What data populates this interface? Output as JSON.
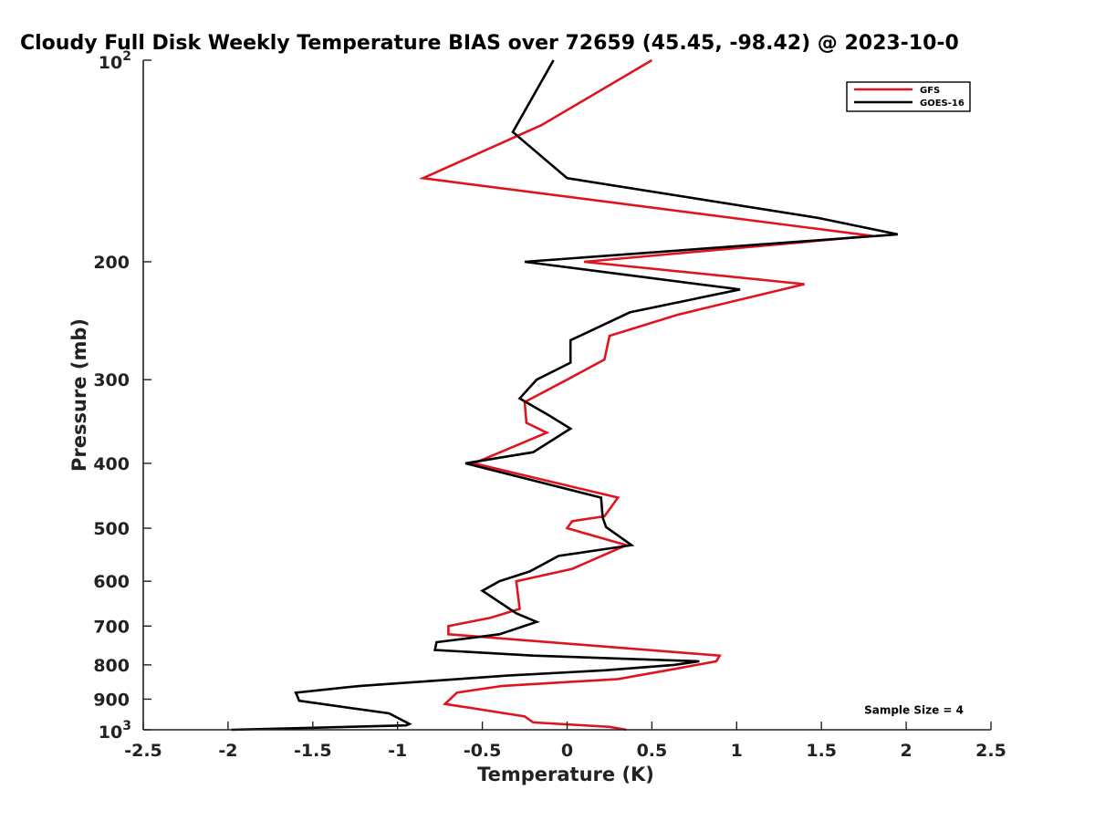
{
  "chart_data": {
    "type": "line",
    "title": "Cloudy Full Disk Weekly Temperature BIAS over 72659 (45.45, -98.42) @ 2023-10-0",
    "xlabel": "Temperature (K)",
    "ylabel": "Pressure (mb)",
    "xlim": [
      -2.5,
      2.5
    ],
    "ylim": [
      100,
      1000
    ],
    "yscale": "log",
    "y_reversed": true,
    "x_ticks": [
      "-2.5",
      "-2",
      "-1.5",
      "-1",
      "-0.5",
      "0",
      "0.5",
      "1",
      "1.5",
      "2",
      "2.5"
    ],
    "y_ticks": [
      {
        "value": 200,
        "label": "200"
      },
      {
        "value": 300,
        "label": "300"
      },
      {
        "value": 400,
        "label": "400"
      },
      {
        "value": 500,
        "label": "500"
      },
      {
        "value": 600,
        "label": "600"
      },
      {
        "value": 700,
        "label": "700"
      },
      {
        "value": 800,
        "label": "800"
      },
      {
        "value": 900,
        "label": "900"
      }
    ],
    "y_tick_power_labels": [
      {
        "value": 100,
        "base": "10",
        "exp": "2"
      },
      {
        "value": 1000,
        "base": "10",
        "exp": "3"
      }
    ],
    "legend_position": "top-right",
    "series": [
      {
        "name": "GFS",
        "color": "#e0141e",
        "points": [
          [
            0.5,
            100
          ],
          [
            -0.15,
            125
          ],
          [
            -0.85,
            150
          ],
          [
            1.8,
            183
          ],
          [
            0.1,
            200
          ],
          [
            1.4,
            216
          ],
          [
            0.65,
            240
          ],
          [
            0.25,
            258
          ],
          [
            0.22,
            280
          ],
          [
            0.0,
            300
          ],
          [
            -0.25,
            324
          ],
          [
            -0.24,
            348
          ],
          [
            -0.12,
            360
          ],
          [
            -0.55,
            400
          ],
          [
            0.3,
            450
          ],
          [
            0.22,
            480
          ],
          [
            0.03,
            488
          ],
          [
            0.0,
            500
          ],
          [
            0.35,
            530
          ],
          [
            0.03,
            575
          ],
          [
            -0.3,
            600
          ],
          [
            -0.28,
            660
          ],
          [
            -0.45,
            680
          ],
          [
            -0.7,
            700
          ],
          [
            -0.7,
            720
          ],
          [
            0.9,
            775
          ],
          [
            0.88,
            790
          ],
          [
            0.65,
            810
          ],
          [
            0.3,
            840
          ],
          [
            -0.38,
            860
          ],
          [
            -0.65,
            880
          ],
          [
            -0.72,
            915
          ],
          [
            -0.25,
            955
          ],
          [
            -0.2,
            975
          ],
          [
            0.25,
            990
          ],
          [
            0.35,
            1000
          ]
        ]
      },
      {
        "name": "GOES-16",
        "color": "#000000",
        "points": [
          [
            -0.08,
            100
          ],
          [
            -0.32,
            128
          ],
          [
            0.0,
            150
          ],
          [
            1.48,
            172
          ],
          [
            1.95,
            182
          ],
          [
            -0.25,
            200
          ],
          [
            1.02,
            220
          ],
          [
            0.37,
            238
          ],
          [
            0.02,
            262
          ],
          [
            0.02,
            283
          ],
          [
            -0.18,
            300
          ],
          [
            -0.28,
            320
          ],
          [
            -0.1,
            340
          ],
          [
            0.02,
            355
          ],
          [
            -0.2,
            385
          ],
          [
            -0.6,
            400
          ],
          [
            0.2,
            450
          ],
          [
            0.21,
            482
          ],
          [
            0.23,
            498
          ],
          [
            0.38,
            530
          ],
          [
            -0.05,
            550
          ],
          [
            -0.22,
            580
          ],
          [
            -0.4,
            600
          ],
          [
            -0.5,
            620
          ],
          [
            -0.3,
            670
          ],
          [
            -0.18,
            690
          ],
          [
            -0.4,
            720
          ],
          [
            -0.77,
            740
          ],
          [
            -0.78,
            760
          ],
          [
            -0.2,
            775
          ],
          [
            0.78,
            790
          ],
          [
            0.63,
            800
          ],
          [
            0.22,
            815
          ],
          [
            -0.35,
            830
          ],
          [
            -1.22,
            860
          ],
          [
            -1.6,
            880
          ],
          [
            -1.58,
            905
          ],
          [
            -1.05,
            945
          ],
          [
            -0.93,
            980
          ],
          [
            -0.95,
            985
          ],
          [
            -1.98,
            1000
          ]
        ]
      }
    ],
    "annotations": [
      {
        "text": "Sample Size = 4",
        "x": 2.0,
        "y": 935
      }
    ]
  }
}
